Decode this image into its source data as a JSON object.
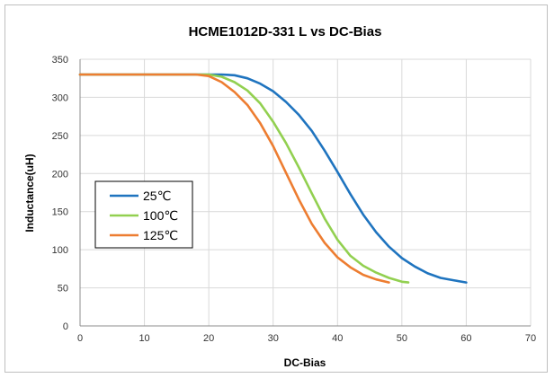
{
  "chart_data": {
    "type": "line",
    "title": "HCME1012D-331 L vs DC-Bias",
    "xlabel": "DC-Bias",
    "ylabel": "Inductance(uH)",
    "xlim": [
      0,
      70
    ],
    "ylim": [
      0,
      350
    ],
    "xticks": [
      0,
      10,
      20,
      30,
      40,
      50,
      60,
      70
    ],
    "yticks": [
      0,
      50,
      100,
      150,
      200,
      250,
      300,
      350
    ],
    "grid": true,
    "legend": "inside-left",
    "series": [
      {
        "name": "25℃",
        "color": "#1f74bf",
        "points": [
          [
            0,
            330
          ],
          [
            20,
            330
          ],
          [
            22,
            330
          ],
          [
            24,
            329
          ],
          [
            26,
            325
          ],
          [
            28,
            318
          ],
          [
            30,
            308
          ],
          [
            32,
            294
          ],
          [
            34,
            277
          ],
          [
            36,
            256
          ],
          [
            38,
            230
          ],
          [
            40,
            202
          ],
          [
            42,
            173
          ],
          [
            44,
            146
          ],
          [
            46,
            123
          ],
          [
            48,
            104
          ],
          [
            50,
            89
          ],
          [
            52,
            78
          ],
          [
            54,
            69
          ],
          [
            56,
            63
          ],
          [
            58,
            60
          ],
          [
            60,
            57
          ]
        ]
      },
      {
        "name": "100℃",
        "color": "#92d050",
        "points": [
          [
            0,
            330
          ],
          [
            19,
            330
          ],
          [
            20,
            330
          ],
          [
            22,
            327
          ],
          [
            24,
            320
          ],
          [
            26,
            309
          ],
          [
            28,
            292
          ],
          [
            30,
            268
          ],
          [
            32,
            240
          ],
          [
            34,
            208
          ],
          [
            36,
            174
          ],
          [
            38,
            141
          ],
          [
            40,
            113
          ],
          [
            42,
            92
          ],
          [
            44,
            79
          ],
          [
            46,
            70
          ],
          [
            48,
            63
          ],
          [
            50,
            58
          ],
          [
            51,
            57
          ]
        ]
      },
      {
        "name": "125℃",
        "color": "#ed7d31",
        "points": [
          [
            0,
            330
          ],
          [
            18,
            330
          ],
          [
            20,
            328
          ],
          [
            22,
            320
          ],
          [
            24,
            307
          ],
          [
            26,
            290
          ],
          [
            28,
            266
          ],
          [
            30,
            236
          ],
          [
            32,
            201
          ],
          [
            34,
            166
          ],
          [
            36,
            134
          ],
          [
            38,
            109
          ],
          [
            40,
            90
          ],
          [
            42,
            77
          ],
          [
            44,
            67
          ],
          [
            46,
            61
          ],
          [
            48,
            57
          ]
        ]
      }
    ]
  }
}
